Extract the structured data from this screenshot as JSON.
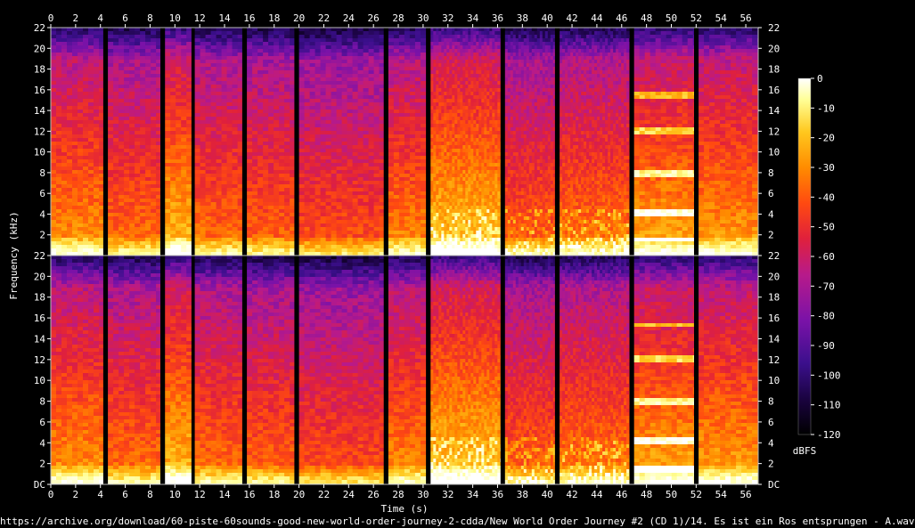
{
  "chart_data": {
    "type": "heatmap",
    "xlabel": "Time (s)",
    "ylabel": "Frequency (kHz)",
    "xlim": [
      0,
      57
    ],
    "ylim": [
      0,
      22
    ],
    "x_ticks": [
      "0",
      "2",
      "4",
      "6",
      "8",
      "10",
      "12",
      "14",
      "16",
      "18",
      "20",
      "22",
      "24",
      "26",
      "28",
      "30",
      "32",
      "34",
      "36",
      "38",
      "40",
      "42",
      "44",
      "46",
      "48",
      "50",
      "52",
      "54",
      "56"
    ],
    "y_ticks_upper": [
      "22",
      "20",
      "18",
      "16",
      "14",
      "12",
      "10",
      "8",
      "6",
      "4",
      "2"
    ],
    "y_ticks_lower": [
      "22",
      "20",
      "18",
      "16",
      "14",
      "12",
      "10",
      "8",
      "6",
      "4",
      "2",
      "DC"
    ],
    "channels": 2,
    "segments": [
      {
        "start": 0.0,
        "end": 4.2,
        "intensity": 0.78,
        "texture": "dense"
      },
      {
        "start": 4.6,
        "end": 8.8,
        "intensity": 0.72,
        "texture": "dense"
      },
      {
        "start": 9.2,
        "end": 11.3,
        "intensity": 0.86,
        "texture": "dense"
      },
      {
        "start": 11.6,
        "end": 15.4,
        "intensity": 0.72,
        "texture": "dense"
      },
      {
        "start": 15.8,
        "end": 19.6,
        "intensity": 0.7,
        "texture": "dense"
      },
      {
        "start": 20.0,
        "end": 26.8,
        "intensity": 0.66,
        "texture": "dense"
      },
      {
        "start": 27.2,
        "end": 30.2,
        "intensity": 0.76,
        "texture": "dense"
      },
      {
        "start": 30.6,
        "end": 36.2,
        "intensity": 0.88,
        "texture": "transient"
      },
      {
        "start": 36.6,
        "end": 40.6,
        "intensity": 0.7,
        "texture": "transient"
      },
      {
        "start": 41.0,
        "end": 46.6,
        "intensity": 0.74,
        "texture": "transient"
      },
      {
        "start": 47.0,
        "end": 51.8,
        "intensity": 0.82,
        "texture": "tonal"
      },
      {
        "start": 52.2,
        "end": 57.0,
        "intensity": 0.8,
        "texture": "dense"
      }
    ],
    "colorbar": {
      "label": "dBFS",
      "ticks": [
        "0",
        "-10",
        "-20",
        "-30",
        "-40",
        "-50",
        "-60",
        "-70",
        "-80",
        "-90",
        "-100",
        "-110",
        "-120"
      ],
      "range": [
        -120,
        0
      ],
      "colors": [
        "#000000",
        "#1a0340",
        "#3b0f8c",
        "#7a12a8",
        "#b81a8a",
        "#e0203c",
        "#ff4a10",
        "#ff8c00",
        "#ffc81e",
        "#ffff96",
        "#ffffff"
      ]
    }
  },
  "footer_text": "https://archive.org/download/60-piste-60sounds-good-new-world-order-journey-2-cdda/New World Order Journey #2 (CD 1)/14. Es ist ein Ros entsprungen - A.wav"
}
